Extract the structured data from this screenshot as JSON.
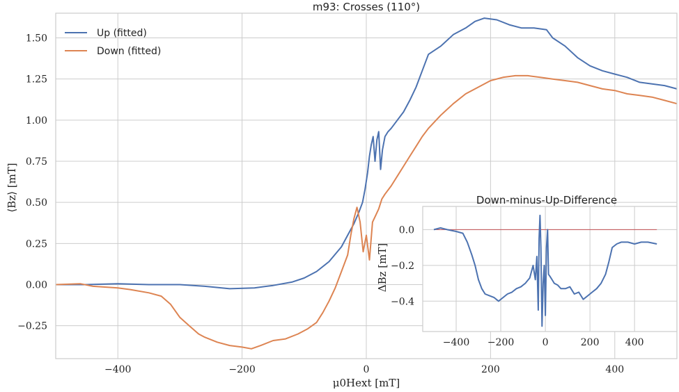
{
  "chart_data": [
    {
      "type": "line",
      "title": "m93: Crosses (110°)",
      "xlabel": "μ0Hext [mT]",
      "ylabel": "⟨Bz⟩ [mT]",
      "xlim": [
        -500,
        500
      ],
      "ylim": [
        -0.45,
        1.65
      ],
      "xticks": [
        -400,
        -200,
        0,
        200,
        400
      ],
      "xtick_labels": [
        "−400",
        "−200",
        "0",
        "200",
        "400"
      ],
      "yticks": [
        -0.25,
        0.0,
        0.25,
        0.5,
        0.75,
        1.0,
        1.25,
        1.5
      ],
      "ytick_labels": [
        "−0.25",
        "0.00",
        "0.25",
        "0.50",
        "0.75",
        "1.00",
        "1.25",
        "1.50"
      ],
      "grid": true,
      "legend_position": "top-left",
      "series": [
        {
          "name": "Up (fitted)",
          "color": "#4c72b0",
          "points": [
            [
              -500,
              0.0
            ],
            [
              -450,
              0.0
            ],
            [
              -400,
              0.005
            ],
            [
              -350,
              0.0
            ],
            [
              -300,
              0.0
            ],
            [
              -260,
              -0.01
            ],
            [
              -220,
              -0.025
            ],
            [
              -180,
              -0.02
            ],
            [
              -150,
              -0.005
            ],
            [
              -120,
              0.015
            ],
            [
              -100,
              0.04
            ],
            [
              -80,
              0.08
            ],
            [
              -60,
              0.14
            ],
            [
              -40,
              0.23
            ],
            [
              -30,
              0.3
            ],
            [
              -20,
              0.37
            ],
            [
              -12,
              0.44
            ],
            [
              -6,
              0.5
            ],
            [
              -2,
              0.58
            ],
            [
              2,
              0.68
            ],
            [
              5,
              0.78
            ],
            [
              8,
              0.85
            ],
            [
              11,
              0.9
            ],
            [
              14,
              0.75
            ],
            [
              17,
              0.88
            ],
            [
              20,
              0.93
            ],
            [
              23,
              0.7
            ],
            [
              26,
              0.82
            ],
            [
              30,
              0.9
            ],
            [
              35,
              0.93
            ],
            [
              40,
              0.95
            ],
            [
              50,
              1.0
            ],
            [
              60,
              1.05
            ],
            [
              70,
              1.12
            ],
            [
              80,
              1.2
            ],
            [
              90,
              1.3
            ],
            [
              100,
              1.4
            ],
            [
              120,
              1.45
            ],
            [
              140,
              1.52
            ],
            [
              160,
              1.56
            ],
            [
              175,
              1.6
            ],
            [
              190,
              1.62
            ],
            [
              210,
              1.61
            ],
            [
              230,
              1.58
            ],
            [
              250,
              1.56
            ],
            [
              270,
              1.56
            ],
            [
              290,
              1.55
            ],
            [
              300,
              1.5
            ],
            [
              320,
              1.45
            ],
            [
              340,
              1.38
            ],
            [
              360,
              1.33
            ],
            [
              380,
              1.3
            ],
            [
              400,
              1.28
            ],
            [
              420,
              1.26
            ],
            [
              440,
              1.23
            ],
            [
              460,
              1.22
            ],
            [
              480,
              1.21
            ],
            [
              500,
              1.19
            ]
          ]
        },
        {
          "name": "Down (fitted)",
          "color": "#dd8452",
          "points": [
            [
              -500,
              0.0
            ],
            [
              -460,
              0.005
            ],
            [
              -440,
              -0.01
            ],
            [
              -400,
              -0.02
            ],
            [
              -380,
              -0.03
            ],
            [
              -350,
              -0.05
            ],
            [
              -330,
              -0.07
            ],
            [
              -315,
              -0.12
            ],
            [
              -300,
              -0.2
            ],
            [
              -285,
              -0.25
            ],
            [
              -270,
              -0.3
            ],
            [
              -260,
              -0.32
            ],
            [
              -240,
              -0.35
            ],
            [
              -220,
              -0.37
            ],
            [
              -200,
              -0.38
            ],
            [
              -185,
              -0.39
            ],
            [
              -170,
              -0.37
            ],
            [
              -150,
              -0.34
            ],
            [
              -130,
              -0.33
            ],
            [
              -110,
              -0.3
            ],
            [
              -95,
              -0.27
            ],
            [
              -80,
              -0.23
            ],
            [
              -70,
              -0.17
            ],
            [
              -60,
              -0.1
            ],
            [
              -50,
              -0.02
            ],
            [
              -40,
              0.08
            ],
            [
              -30,
              0.18
            ],
            [
              -25,
              0.3
            ],
            [
              -20,
              0.4
            ],
            [
              -15,
              0.47
            ],
            [
              -10,
              0.38
            ],
            [
              -5,
              0.2
            ],
            [
              0,
              0.3
            ],
            [
              5,
              0.15
            ],
            [
              10,
              0.38
            ],
            [
              15,
              0.42
            ],
            [
              20,
              0.46
            ],
            [
              25,
              0.52
            ],
            [
              30,
              0.55
            ],
            [
              40,
              0.6
            ],
            [
              50,
              0.66
            ],
            [
              60,
              0.72
            ],
            [
              70,
              0.78
            ],
            [
              80,
              0.84
            ],
            [
              90,
              0.9
            ],
            [
              100,
              0.95
            ],
            [
              120,
              1.03
            ],
            [
              140,
              1.1
            ],
            [
              160,
              1.16
            ],
            [
              180,
              1.2
            ],
            [
              200,
              1.24
            ],
            [
              220,
              1.26
            ],
            [
              240,
              1.27
            ],
            [
              260,
              1.27
            ],
            [
              280,
              1.26
            ],
            [
              300,
              1.25
            ],
            [
              320,
              1.24
            ],
            [
              340,
              1.23
            ],
            [
              360,
              1.21
            ],
            [
              380,
              1.19
            ],
            [
              400,
              1.18
            ],
            [
              420,
              1.16
            ],
            [
              440,
              1.15
            ],
            [
              460,
              1.14
            ],
            [
              480,
              1.12
            ],
            [
              500,
              1.1
            ]
          ]
        }
      ]
    },
    {
      "type": "line",
      "title": "Down-minus-Up-Difference",
      "xlabel": "",
      "ylabel": "ΔBz [mT]",
      "xlim": [
        -550,
        590
      ],
      "ylim": [
        -0.57,
        0.13
      ],
      "xticks": [
        -400,
        -200,
        0,
        200,
        400
      ],
      "xtick_labels": [
        "−400",
        "−200",
        "0",
        "200",
        "400"
      ],
      "yticks": [
        0.0,
        -0.2,
        -0.4
      ],
      "ytick_labels": [
        "0.0",
        "−0.2",
        "−0.4"
      ],
      "grid": true,
      "reference_line": {
        "y": 0.0,
        "color": "#c44e52"
      },
      "series": [
        {
          "color": "#4c72b0",
          "points": [
            [
              -500,
              0.0
            ],
            [
              -470,
              0.01
            ],
            [
              -440,
              0.0
            ],
            [
              -400,
              -0.01
            ],
            [
              -370,
              -0.02
            ],
            [
              -350,
              -0.07
            ],
            [
              -330,
              -0.14
            ],
            [
              -315,
              -0.2
            ],
            [
              -300,
              -0.28
            ],
            [
              -285,
              -0.33
            ],
            [
              -270,
              -0.36
            ],
            [
              -250,
              -0.37
            ],
            [
              -230,
              -0.38
            ],
            [
              -210,
              -0.4
            ],
            [
              -190,
              -0.38
            ],
            [
              -170,
              -0.36
            ],
            [
              -150,
              -0.35
            ],
            [
              -130,
              -0.33
            ],
            [
              -110,
              -0.32
            ],
            [
              -90,
              -0.3
            ],
            [
              -70,
              -0.27
            ],
            [
              -55,
              -0.2
            ],
            [
              -45,
              -0.28
            ],
            [
              -38,
              -0.15
            ],
            [
              -32,
              -0.45
            ],
            [
              -28,
              -0.05
            ],
            [
              -24,
              0.08
            ],
            [
              -20,
              -0.1
            ],
            [
              -15,
              -0.54
            ],
            [
              -10,
              -0.3
            ],
            [
              -5,
              -0.2
            ],
            [
              0,
              -0.48
            ],
            [
              5,
              -0.1
            ],
            [
              10,
              0.0
            ],
            [
              14,
              -0.25
            ],
            [
              20,
              -0.26
            ],
            [
              30,
              -0.28
            ],
            [
              40,
              -0.3
            ],
            [
              55,
              -0.31
            ],
            [
              70,
              -0.33
            ],
            [
              90,
              -0.33
            ],
            [
              110,
              -0.32
            ],
            [
              130,
              -0.36
            ],
            [
              150,
              -0.35
            ],
            [
              170,
              -0.39
            ],
            [
              190,
              -0.37
            ],
            [
              210,
              -0.35
            ],
            [
              230,
              -0.33
            ],
            [
              250,
              -0.3
            ],
            [
              270,
              -0.25
            ],
            [
              285,
              -0.18
            ],
            [
              300,
              -0.1
            ],
            [
              320,
              -0.08
            ],
            [
              340,
              -0.07
            ],
            [
              370,
              -0.07
            ],
            [
              400,
              -0.08
            ],
            [
              430,
              -0.07
            ],
            [
              460,
              -0.07
            ],
            [
              500,
              -0.08
            ]
          ]
        }
      ]
    }
  ]
}
